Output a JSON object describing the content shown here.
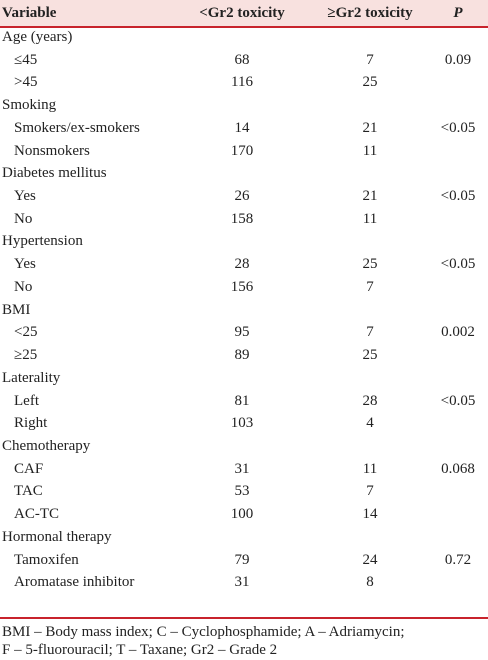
{
  "header": {
    "variable": "Variable",
    "lt": "<Gr2 toxicity",
    "ge": "≥Gr2 toxicity",
    "p": "P"
  },
  "groups": [
    {
      "label": "Age (years)",
      "rows": [
        {
          "label": "≤45",
          "lt": "68",
          "ge": "7",
          "p": "0.09"
        },
        {
          "label": ">45",
          "lt": "116",
          "ge": "25"
        }
      ]
    },
    {
      "label": "Smoking",
      "rows": [
        {
          "label": "Smokers/ex-smokers",
          "lt": "14",
          "ge": "21",
          "p": "<0.05"
        },
        {
          "label": "Nonsmokers",
          "lt": "170",
          "ge": "11"
        }
      ]
    },
    {
      "label": "Diabetes mellitus",
      "rows": [
        {
          "label": "Yes",
          "lt": "26",
          "ge": "21",
          "p": "<0.05"
        },
        {
          "label": "No",
          "lt": "158",
          "ge": "11"
        }
      ]
    },
    {
      "label": "Hypertension",
      "rows": [
        {
          "label": "Yes",
          "lt": "28",
          "ge": "25",
          "p": "<0.05"
        },
        {
          "label": "No",
          "lt": "156",
          "ge": "7"
        }
      ]
    },
    {
      "label": "BMI",
      "rows": [
        {
          "label": "<25",
          "lt": "95",
          "ge": "7",
          "p": "0.002"
        },
        {
          "label": "≥25",
          "lt": "89",
          "ge": "25"
        }
      ]
    },
    {
      "label": "Laterality",
      "rows": [
        {
          "label": "Left",
          "lt": "81",
          "ge": "28",
          "p": "<0.05"
        },
        {
          "label": "Right",
          "lt": "103",
          "ge": "4"
        }
      ]
    },
    {
      "label": "Chemotherapy",
      "rows": [
        {
          "label": "CAF",
          "lt": "31",
          "ge": "11",
          "p": "0.068"
        },
        {
          "label": "TAC",
          "lt": "53",
          "ge": "7"
        },
        {
          "label": "AC-TC",
          "lt": "100",
          "ge": "14"
        }
      ]
    },
    {
      "label": "Hormonal therapy",
      "rows": [
        {
          "label": "Tamoxifen",
          "lt": "79",
          "ge": "24",
          "p": "0.72"
        },
        {
          "label": "Aromatase inhibitor",
          "lt": "31",
          "ge": "8"
        }
      ]
    }
  ],
  "footnote": [
    "BMI – Body mass index; C – Cyclophosphamide; A – Adriamycin;",
    "F – 5-fluorouracil; T – Taxane; Gr2 – Grade 2"
  ]
}
